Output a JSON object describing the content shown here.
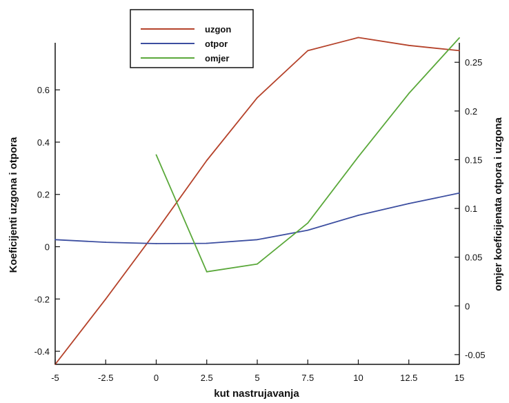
{
  "chart_data": {
    "type": "line",
    "xlabel": "kut nastrujavanja",
    "ylabel_left": "Koeficijenti uzgona i otpora",
    "ylabel_right": "omjer koeficijenata otpora i uzgona",
    "xlim": [
      -5,
      15
    ],
    "ylim_left": [
      -0.45,
      0.78
    ],
    "ylim_right": [
      -0.06,
      0.27
    ],
    "x_ticks": [
      "-5",
      "-2.5",
      "0",
      "2.5",
      "5",
      "7.5",
      "10",
      "12.5",
      "15"
    ],
    "y_left_ticks": [
      "-0.4",
      "-0.2",
      "0",
      "0.2",
      "0.4",
      "0.6"
    ],
    "y_right_ticks": [
      "-0.05",
      "0",
      "0.05",
      "0.1",
      "0.15",
      "0.2",
      "0.25"
    ],
    "legend_position": "top-center",
    "grid": false,
    "series": [
      {
        "name": "uzgon",
        "axis": "left",
        "color": "#b5422a",
        "x": [
          -5,
          -2.5,
          0,
          2.5,
          5,
          7.5,
          10,
          12.5,
          15
        ],
        "y": [
          -0.45,
          -0.2,
          0.06,
          0.33,
          0.57,
          0.75,
          0.8,
          0.77,
          0.75
        ]
      },
      {
        "name": "otpor",
        "axis": "left",
        "color": "#3c4ea0",
        "x": [
          -5,
          -2.5,
          0,
          2.5,
          5,
          7.5,
          10,
          12.5,
          15
        ],
        "y": [
          0.027,
          0.017,
          0.012,
          0.013,
          0.027,
          0.063,
          0.12,
          0.165,
          0.205
        ]
      },
      {
        "name": "omjer",
        "axis": "right",
        "color": "#5aa83a",
        "x": [
          0,
          2.5,
          5,
          7.5,
          10,
          12.5,
          15
        ],
        "y": [
          0.155,
          0.035,
          0.043,
          0.085,
          0.153,
          0.218,
          0.275
        ]
      }
    ]
  }
}
